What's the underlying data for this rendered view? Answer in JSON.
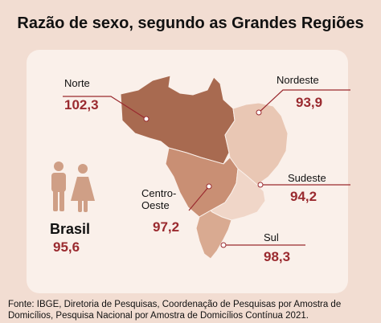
{
  "title": "Razão de sexo, segundo as Grandes Regiões",
  "regions": [
    {
      "name": "Norte",
      "value": "102,3",
      "color": "#a86a50"
    },
    {
      "name": "Nordeste",
      "value": "93,9",
      "color": "#e9c7b4"
    },
    {
      "name": "Centro-Oeste",
      "value": "97,2",
      "color": "#c98f74"
    },
    {
      "name": "Sudeste",
      "value": "94,2",
      "color": "#f0d6c8"
    },
    {
      "name": "Sul",
      "value": "98,3",
      "color": "#d9aa91"
    }
  ],
  "brasil": {
    "label": "Brasil",
    "value": "95,6"
  },
  "source": "Fonte: IBGE, Diretoria de Pesquisas, Coordenação de Pesquisas por Amostra de Domicílios, Pesquisa Nacional por Amostra de Domicílios Contínua 2021.",
  "colors": {
    "accent": "#9a2a2f",
    "background": "#f2ddd2",
    "panel": "#faf0ea",
    "people_icon": "#cf9f86"
  },
  "icons": [
    "man-icon",
    "woman-icon"
  ]
}
